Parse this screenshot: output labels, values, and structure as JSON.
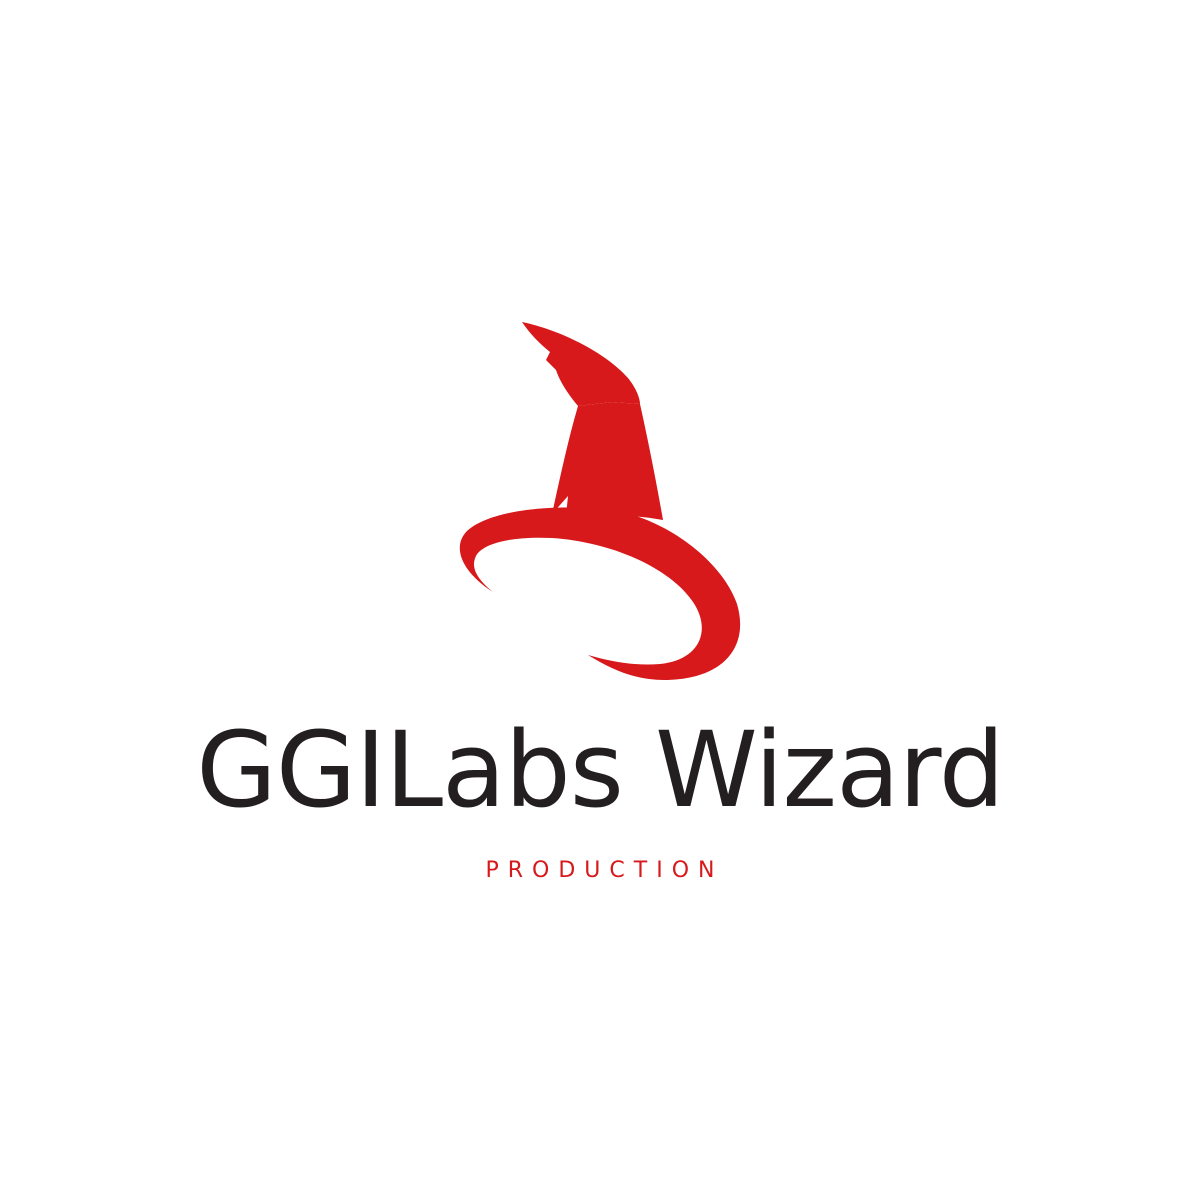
{
  "logo": {
    "icon": "wizard-hat-icon",
    "brand_name": "GGILabs Wizard",
    "tagline": "PRODUCTION"
  },
  "colors": {
    "background": "#ffffff",
    "accent": "#d7191c",
    "text": "#231f20"
  }
}
